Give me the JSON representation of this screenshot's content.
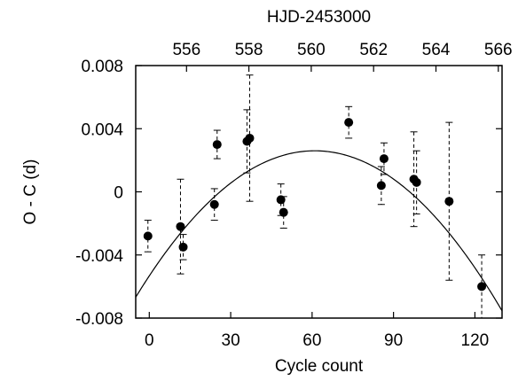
{
  "chart_data": {
    "type": "scatter",
    "title": "",
    "xlabel": "Cycle count",
    "ylabel": "O - C (d)",
    "top_xlabel": "HJD-2453000",
    "xlim": [
      -5,
      130
    ],
    "ylim": [
      -0.008,
      0.008
    ],
    "x_ticks": [
      0,
      30,
      60,
      90,
      120
    ],
    "x_tick_labels": [
      "0",
      "30",
      "60",
      "90",
      "120"
    ],
    "y_ticks": [
      -0.008,
      -0.004,
      0,
      0.004,
      0.008
    ],
    "y_tick_labels": [
      "-0.008",
      "-0.004",
      "0",
      "0.004",
      "0.008"
    ],
    "top_x_ticks": [
      556,
      558,
      560,
      562,
      564,
      566
    ],
    "top_x_tick_labels": [
      "556",
      "558",
      "560",
      "562",
      "564",
      "566"
    ],
    "top_xlim": [
      554.37,
      566.12
    ],
    "grid": false,
    "legend": "none",
    "series": [
      {
        "points": [
          {
            "x": -0.5,
            "y": -0.0028,
            "err": 0.001
          },
          {
            "x": 11.5,
            "y": -0.0022,
            "err": 0.003
          },
          {
            "x": 12.5,
            "y": -0.0035,
            "err": 0.0008
          },
          {
            "x": 24.0,
            "y": -0.0008,
            "err": 0.001
          },
          {
            "x": 25.0,
            "y": 0.003,
            "err": 0.0009
          },
          {
            "x": 36.0,
            "y": 0.0032,
            "err": 0.002
          },
          {
            "x": 37.0,
            "y": 0.0034,
            "err": 0.004
          },
          {
            "x": 48.5,
            "y": -0.0005,
            "err": 0.001
          },
          {
            "x": 49.5,
            "y": -0.0013,
            "err": 0.001
          },
          {
            "x": 73.5,
            "y": 0.0044,
            "err": 0.001
          },
          {
            "x": 85.5,
            "y": 0.0004,
            "err": 0.0012
          },
          {
            "x": 86.5,
            "y": 0.0021,
            "err": 0.001
          },
          {
            "x": 97.5,
            "y": 0.0008,
            "err": 0.003
          },
          {
            "x": 98.5,
            "y": 0.0006,
            "err": 0.002
          },
          {
            "x": 110.5,
            "y": -0.0006,
            "err": 0.005
          },
          {
            "x": 122.5,
            "y": -0.006,
            "err": 0.002
          }
        ]
      }
    ],
    "fit": {
      "type": "quadratic",
      "vertex_x": 61,
      "vertex_y": 0.0026,
      "a": -2.13e-06
    }
  },
  "colors": {
    "ink": "#000000",
    "background": "#ffffff"
  }
}
